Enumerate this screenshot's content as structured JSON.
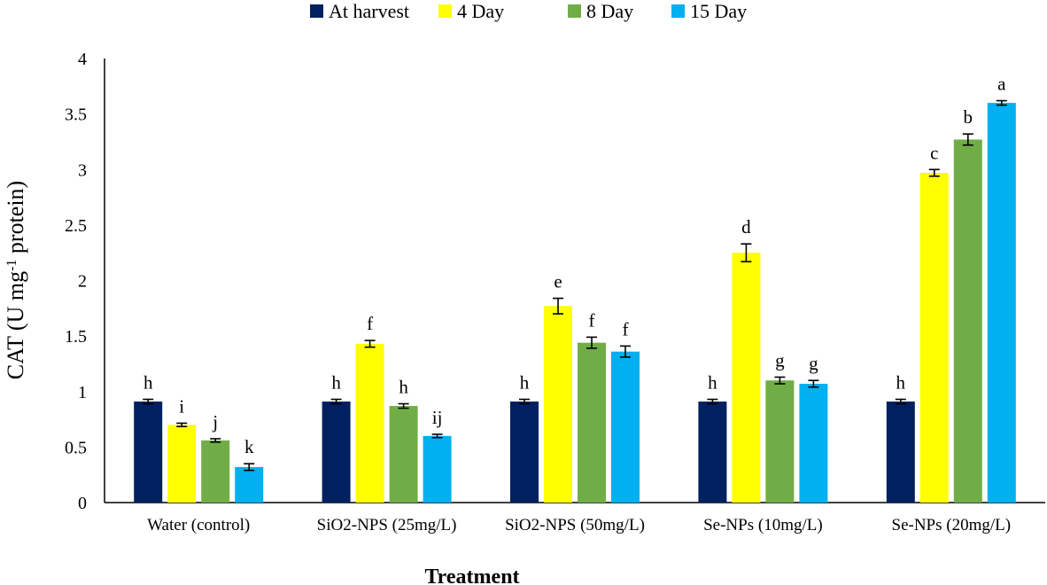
{
  "chart_data": {
    "type": "bar",
    "title": "",
    "xlabel": "Treatment",
    "ylabel": {
      "main": "CAT (U mg",
      "sup": "-1",
      "tail": " protein)"
    },
    "ylim": [
      0,
      4
    ],
    "yticks": [
      "0",
      "0.5",
      "1",
      "1.5",
      "2",
      "2.5",
      "3",
      "3.5",
      "4"
    ],
    "ytick_values": [
      0,
      0.5,
      1,
      1.5,
      2,
      2.5,
      3,
      3.5,
      4
    ],
    "categories": [
      "Water (control)",
      "SiO2-NPS (25mg/L)",
      "SiO2-NPS (50mg/L)",
      "Se-NPs (10mg/L)",
      "Se-NPs (20mg/L)"
    ],
    "legend_position": "top-center",
    "series": [
      {
        "name": "At harvest",
        "color": "#002060",
        "values": [
          0.91,
          0.91,
          0.91,
          0.91,
          0.91
        ],
        "errors": [
          0.02,
          0.02,
          0.02,
          0.02,
          0.02
        ],
        "letters": [
          "h",
          "h",
          "h",
          "h",
          "h"
        ]
      },
      {
        "name": "4 Day",
        "color": "#FFFF00",
        "values": [
          0.7,
          1.43,
          1.77,
          2.25,
          2.97
        ],
        "errors": [
          0.015,
          0.03,
          0.07,
          0.08,
          0.03
        ],
        "letters": [
          "i",
          "f",
          "e",
          "d",
          "c"
        ]
      },
      {
        "name": "8 Day",
        "color": "#70AD47",
        "values": [
          0.56,
          0.87,
          1.44,
          1.1,
          3.27
        ],
        "errors": [
          0.015,
          0.02,
          0.05,
          0.03,
          0.05
        ],
        "letters": [
          "j",
          "h",
          "f",
          "g",
          "b"
        ]
      },
      {
        "name": "15 Day",
        "color": "#00B0F0",
        "values": [
          0.32,
          0.6,
          1.36,
          1.07,
          3.6
        ],
        "errors": [
          0.03,
          0.015,
          0.05,
          0.03,
          0.02
        ],
        "letters": [
          "k",
          "ij",
          "f",
          "g",
          "a"
        ]
      }
    ]
  }
}
